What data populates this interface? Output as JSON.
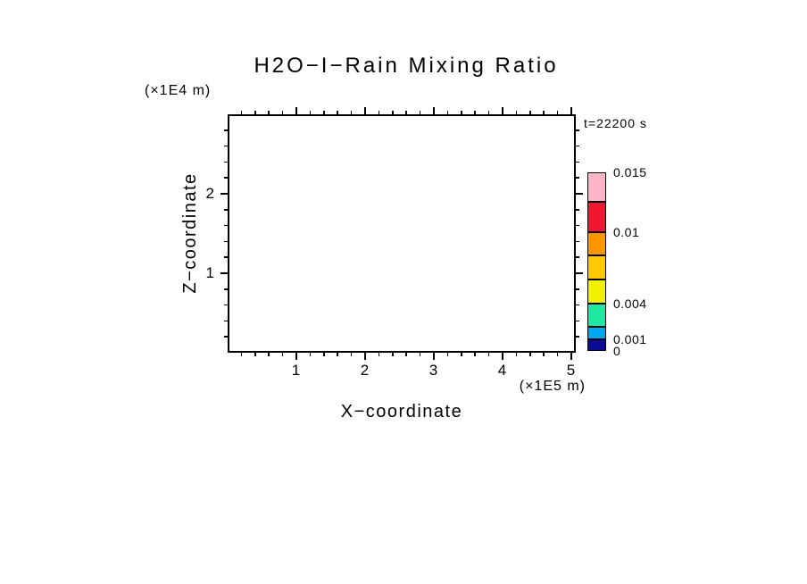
{
  "chart_data": {
    "type": "contour",
    "title": "H2O−I−Rain Mixing Ratio",
    "xlabel": "X−coordinate",
    "x_axis_units": "(×1E5 m)",
    "ylabel": "Z−coordinate",
    "y_axis_units": "(×1E4 m)",
    "annotation": "t=22200 s",
    "xlim": [
      0,
      5.065
    ],
    "ylim": [
      0,
      3.0
    ],
    "x_major_ticks": [
      1,
      2,
      3,
      4,
      5
    ],
    "y_major_ticks": [
      1,
      2
    ],
    "x_minor_step": 0.2,
    "y_minor_step": 0.2,
    "grid": false,
    "plot_content": "empty field - no contours drawn",
    "axis_color": "#000000",
    "background_color": "#ffffff",
    "colorbar": {
      "range": [
        0,
        0.015
      ],
      "segments": [
        {
          "from": 0,
          "to": 0.001,
          "color": "#0a0a96"
        },
        {
          "from": 0.001,
          "to": 0.002,
          "color": "#00a8f0"
        },
        {
          "from": 0.002,
          "to": 0.004,
          "color": "#20e8a0"
        },
        {
          "from": 0.004,
          "to": 0.006,
          "color": "#f0f000"
        },
        {
          "from": 0.006,
          "to": 0.008,
          "color": "#ffc800"
        },
        {
          "from": 0.008,
          "to": 0.01,
          "color": "#ff9600"
        },
        {
          "from": 0.01,
          "to": 0.0125,
          "color": "#f01830"
        },
        {
          "from": 0.0125,
          "to": 0.015,
          "color": "#ffb4c8"
        }
      ],
      "labels": [
        {
          "value": 0.015,
          "text": "0.015"
        },
        {
          "value": 0.01,
          "text": "0.01"
        },
        {
          "value": 0.004,
          "text": "0.004"
        },
        {
          "value": 0.001,
          "text": "0.001"
        },
        {
          "value": 0,
          "text": "0"
        }
      ]
    }
  }
}
